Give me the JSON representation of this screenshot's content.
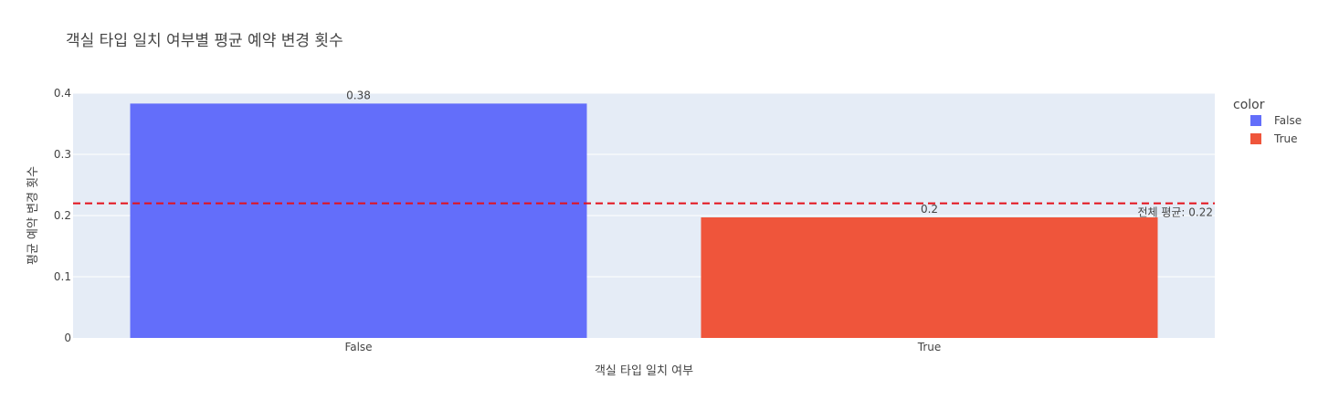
{
  "chart_data": {
    "type": "bar",
    "title": "객실 타입 일치 여부별 평균 예약 변경 횟수",
    "xlabel": "객실 타입 일치 여부",
    "ylabel": "평균 예약 변경 횟수",
    "categories": [
      "False",
      "True"
    ],
    "values": [
      0.383,
      0.197
    ],
    "data_labels": [
      "0.38",
      "0.2"
    ],
    "colors": [
      "#636efa",
      "#ef553b"
    ],
    "ylim": [
      0,
      0.4
    ],
    "yticks": [
      0,
      0.1,
      0.2,
      0.3,
      0.4
    ],
    "ytick_labels": [
      "0",
      "0.1",
      "0.2",
      "0.3",
      "0.4"
    ],
    "grid": true,
    "legend": {
      "title": "color",
      "position": "right",
      "items": [
        {
          "label": "False",
          "color": "#636efa"
        },
        {
          "label": "True",
          "color": "#ef553b"
        }
      ]
    },
    "reference_line": {
      "value": 0.22,
      "color": "#e4111b",
      "style": "dashed",
      "label": "전체 평균: 0.22"
    }
  }
}
